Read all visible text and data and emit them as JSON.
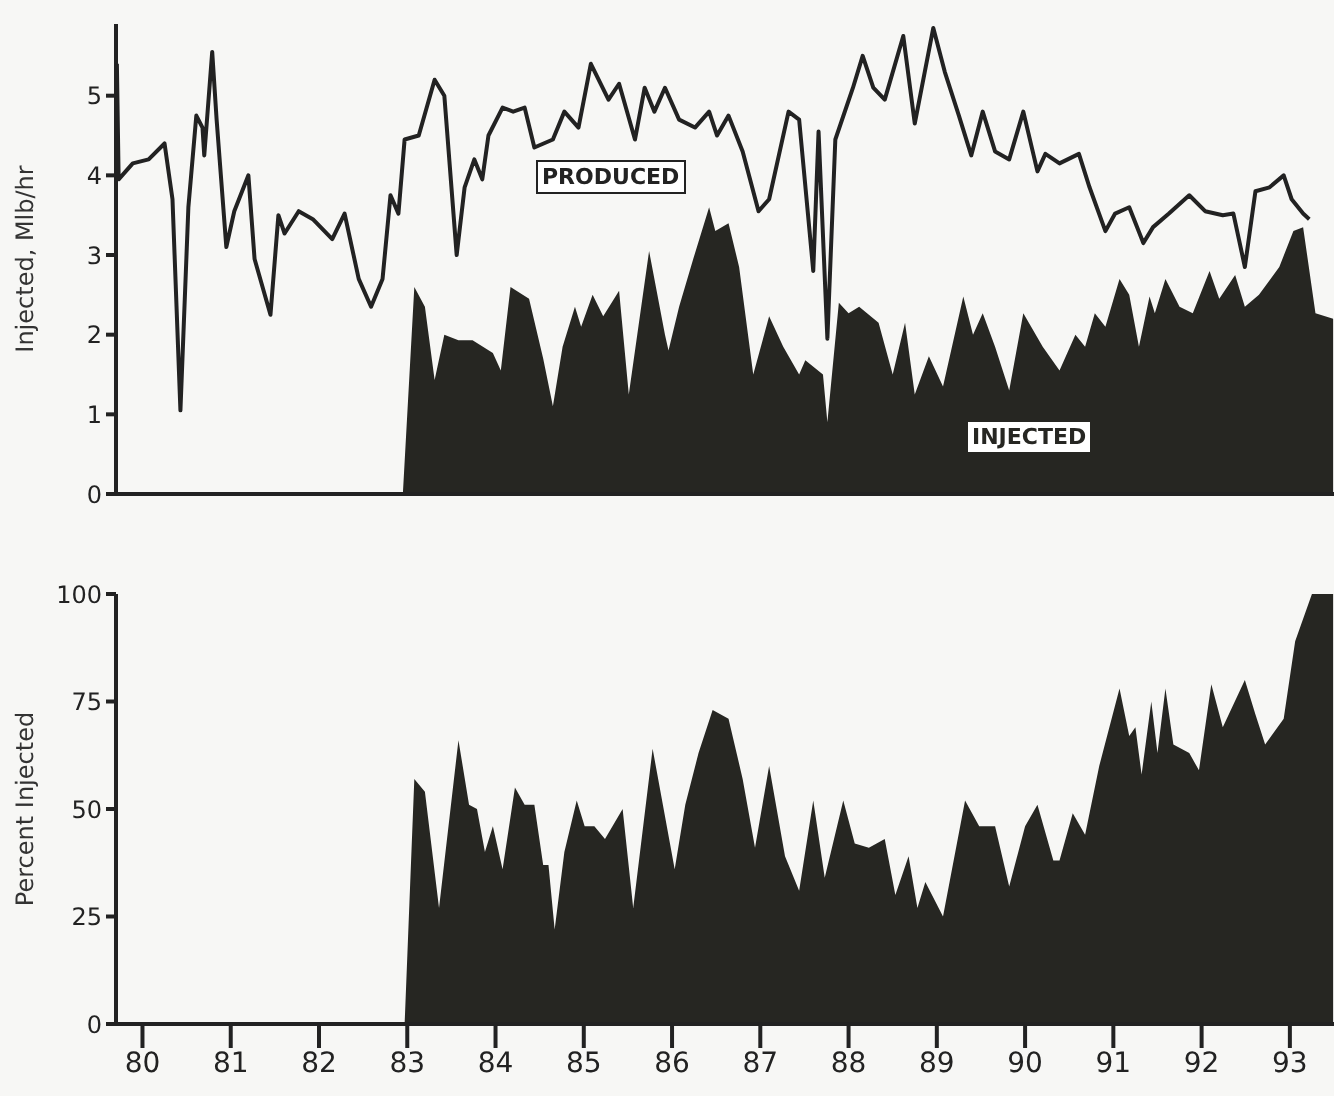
{
  "chart_data": [
    {
      "type": "area",
      "ylabel": "Injected, Mlb/hr",
      "xlim": [
        79.7,
        93.5
      ],
      "ylim": [
        0,
        5.9
      ],
      "yticks": [
        0,
        1,
        2,
        3,
        4,
        5
      ],
      "tick_labels": "y",
      "series": [
        {
          "type": "line",
          "name": "PRODUCED",
          "color": "#222222",
          "x": [
            79.71,
            79.73,
            79.89,
            80.07,
            80.25,
            80.34,
            80.43,
            80.52,
            80.61,
            80.68,
            80.7,
            80.79,
            80.84,
            80.95,
            81.04,
            81.2,
            81.27,
            81.45,
            81.54,
            81.61,
            81.77,
            81.93,
            82.15,
            82.29,
            82.45,
            82.59,
            82.72,
            82.81,
            82.9,
            82.97,
            83.13,
            83.31,
            83.42,
            83.56,
            83.65,
            83.76,
            83.85,
            83.92,
            84.08,
            84.2,
            84.33,
            84.44,
            84.65,
            84.78,
            84.94,
            85.08,
            85.28,
            85.4,
            85.58,
            85.69,
            85.8,
            85.92,
            86.08,
            86.26,
            86.42,
            86.51,
            86.64,
            86.8,
            86.98,
            87.1,
            87.32,
            87.44,
            87.6,
            87.66,
            87.76,
            87.85,
            88.05,
            88.16,
            88.28,
            88.41,
            88.62,
            88.75,
            88.96,
            89.09,
            89.25,
            89.39,
            89.52,
            89.66,
            89.82,
            89.98,
            90.14,
            90.23,
            90.39,
            90.61,
            90.73,
            90.91,
            91.02,
            91.18,
            91.34,
            91.45,
            91.63,
            91.86,
            92.04,
            92.24,
            92.36,
            92.49,
            92.61,
            92.77,
            92.93,
            93.02,
            93.15,
            93.22
          ],
          "values": [
            5.4,
            3.95,
            4.15,
            4.2,
            4.4,
            3.7,
            1.05,
            3.6,
            4.75,
            4.6,
            4.25,
            5.55,
            4.7,
            3.1,
            3.55,
            4.0,
            2.95,
            2.25,
            3.5,
            3.27,
            3.55,
            3.45,
            3.2,
            3.52,
            2.7,
            2.35,
            2.7,
            3.75,
            3.52,
            4.45,
            4.5,
            5.2,
            5.0,
            3.0,
            3.85,
            4.2,
            3.95,
            4.5,
            4.85,
            4.8,
            4.85,
            4.35,
            4.45,
            4.8,
            4.6,
            5.4,
            4.95,
            5.15,
            4.45,
            5.1,
            4.8,
            5.1,
            4.7,
            4.6,
            4.8,
            4.5,
            4.75,
            4.3,
            3.55,
            3.7,
            4.8,
            4.7,
            2.8,
            4.55,
            1.95,
            4.45,
            5.1,
            5.5,
            5.1,
            4.95,
            5.75,
            4.65,
            5.85,
            5.3,
            4.75,
            4.25,
            4.8,
            4.3,
            4.2,
            4.8,
            4.05,
            4.27,
            4.15,
            4.27,
            3.85,
            3.3,
            3.52,
            3.6,
            3.15,
            3.35,
            3.52,
            3.75,
            3.55,
            3.5,
            3.52,
            2.85,
            3.8,
            3.85,
            4.0,
            3.7,
            3.52,
            3.45
          ]
        },
        {
          "type": "area",
          "name": "INJECTED",
          "color": "#262622",
          "x": [
            82.95,
            83.08,
            83.2,
            83.31,
            83.42,
            83.58,
            83.74,
            83.97,
            84.06,
            84.17,
            84.38,
            84.54,
            84.65,
            84.76,
            84.9,
            84.97,
            85.1,
            85.22,
            85.4,
            85.51,
            85.74,
            85.92,
            85.96,
            86.08,
            86.24,
            86.42,
            86.49,
            86.64,
            86.76,
            86.92,
            87.1,
            87.26,
            87.44,
            87.51,
            87.71,
            87.76,
            87.89,
            88.0,
            88.12,
            88.34,
            88.5,
            88.64,
            88.75,
            88.91,
            89.07,
            89.3,
            89.41,
            89.52,
            89.66,
            89.82,
            89.98,
            90.2,
            90.39,
            90.57,
            90.68,
            90.79,
            90.91,
            91.07,
            91.18,
            91.29,
            91.41,
            91.47,
            91.59,
            91.75,
            91.9,
            92.09,
            92.2,
            92.38,
            92.49,
            92.65,
            92.88,
            93.04,
            93.15,
            93.29,
            93.49
          ],
          "values": [
            0,
            2.6,
            2.35,
            1.43,
            2.0,
            1.93,
            1.93,
            1.77,
            1.55,
            2.6,
            2.45,
            1.7,
            1.1,
            1.85,
            2.35,
            2.1,
            2.5,
            2.23,
            2.55,
            1.25,
            3.05,
            2.0,
            1.8,
            2.35,
            2.95,
            3.6,
            3.3,
            3.4,
            2.85,
            1.5,
            2.23,
            1.85,
            1.5,
            1.68,
            1.5,
            0.9,
            2.4,
            2.27,
            2.35,
            2.15,
            1.5,
            2.15,
            1.25,
            1.73,
            1.35,
            2.48,
            2.0,
            2.27,
            1.85,
            1.3,
            2.27,
            1.85,
            1.55,
            2.0,
            1.85,
            2.27,
            2.1,
            2.7,
            2.5,
            1.85,
            2.48,
            2.27,
            2.7,
            2.35,
            2.27,
            2.8,
            2.45,
            2.75,
            2.35,
            2.5,
            2.85,
            3.3,
            3.35,
            2.27,
            2.2
          ]
        }
      ]
    },
    {
      "type": "area",
      "ylabel": "Percent Injected",
      "xlim": [
        79.7,
        93.5
      ],
      "xticks": [
        80,
        81,
        82,
        83,
        84,
        85,
        86,
        87,
        88,
        89,
        90,
        91,
        92,
        93
      ],
      "ylim": [
        0,
        100
      ],
      "yticks": [
        0,
        25,
        50,
        75,
        100
      ],
      "color": "#262622",
      "x": [
        82.97,
        83.08,
        83.2,
        83.36,
        83.58,
        83.7,
        83.79,
        83.88,
        83.97,
        84.08,
        84.22,
        84.33,
        84.44,
        84.54,
        84.6,
        84.67,
        84.78,
        84.92,
        85.01,
        85.12,
        85.24,
        85.44,
        85.56,
        85.78,
        86.03,
        86.15,
        86.3,
        86.46,
        86.64,
        86.8,
        86.94,
        87.1,
        87.28,
        87.44,
        87.6,
        87.73,
        87.94,
        88.07,
        88.23,
        88.41,
        88.53,
        88.68,
        88.78,
        88.87,
        89.07,
        89.32,
        89.48,
        89.66,
        89.82,
        90.0,
        90.14,
        90.32,
        90.39,
        90.54,
        90.68,
        90.84,
        91.07,
        91.18,
        91.25,
        91.32,
        91.43,
        91.5,
        91.59,
        91.68,
        91.86,
        91.97,
        92.11,
        92.24,
        92.49,
        92.61,
        92.72,
        92.93,
        93.06,
        93.25,
        93.49
      ],
      "values": [
        0,
        57,
        54,
        27,
        66,
        51,
        50,
        40,
        46,
        36,
        55,
        51,
        51,
        37,
        37,
        22,
        40,
        52,
        46,
        46,
        43,
        50,
        27,
        64,
        36,
        51,
        63,
        73,
        71,
        57,
        41,
        60,
        39,
        31,
        52,
        34,
        52,
        42,
        41,
        43,
        30,
        39,
        27,
        33,
        25,
        52,
        46,
        46,
        32,
        46,
        51,
        38,
        38,
        49,
        44,
        60,
        78,
        67,
        69,
        58,
        75,
        63,
        78,
        65,
        63,
        59,
        79,
        69,
        80,
        72,
        65,
        71,
        89,
        100,
        100
      ]
    }
  ]
}
